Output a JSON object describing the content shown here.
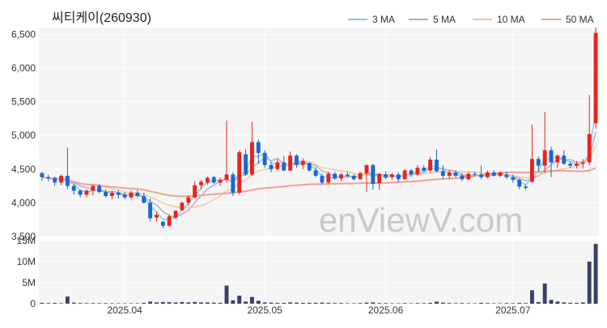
{
  "title": "씨티케이(260930)",
  "watermark": "enViewV.com",
  "legend": [
    {
      "name": "3 MA",
      "color": "#7fcfd4"
    },
    {
      "name": "5 MA",
      "color": "#b5a6d6"
    },
    {
      "name": "10 MA",
      "color": "#f0c98c"
    },
    {
      "name": "50 MA",
      "color": "#f4a08e"
    }
  ],
  "colors": {
    "up": "#e8231f",
    "down": "#1a67d2",
    "volume": "#3b3f66",
    "plot_bg": "#f5f5f5",
    "grid": "#ffffff"
  },
  "chart_data": {
    "type": "candlestick",
    "price_axis": {
      "ylim": [
        3500,
        6600
      ],
      "ticks": [
        3500,
        4000,
        4500,
        5000,
        5500,
        6000,
        6500
      ],
      "tick_labels": [
        "3,500",
        "4,000",
        "4,500",
        "5,000",
        "5,500",
        "6,000",
        "6,500"
      ]
    },
    "volume_axis": {
      "ylim": [
        0,
        15000000
      ],
      "ticks": [
        0,
        5000000,
        10000000,
        15000000
      ],
      "tick_labels": [
        "0",
        "5M",
        "10M",
        "15M"
      ]
    },
    "x_tick_labels": [
      {
        "index": 13,
        "label": "2025.04"
      },
      {
        "index": 35,
        "label": "2025.05"
      },
      {
        "index": 54,
        "label": "2025.06"
      },
      {
        "index": 74,
        "label": "2025.07"
      }
    ],
    "candles": [
      [
        4440,
        4460,
        4330,
        4380,
        200000
      ],
      [
        4380,
        4420,
        4320,
        4360,
        150000
      ],
      [
        4370,
        4390,
        4250,
        4300,
        180000
      ],
      [
        4300,
        4420,
        4260,
        4400,
        120000
      ],
      [
        4400,
        4820,
        4200,
        4250,
        1700000
      ],
      [
        4250,
        4280,
        4120,
        4180,
        250000
      ],
      [
        4180,
        4200,
        4080,
        4120,
        150000
      ],
      [
        4120,
        4200,
        4080,
        4180,
        130000
      ],
      [
        4180,
        4270,
        4110,
        4250,
        140000
      ],
      [
        4250,
        4280,
        4140,
        4160,
        120000
      ],
      [
        4160,
        4200,
        4080,
        4100,
        130000
      ],
      [
        4100,
        4180,
        4050,
        4150,
        110000
      ],
      [
        4150,
        4190,
        4060,
        4120,
        100000
      ],
      [
        4120,
        4160,
        4050,
        4080,
        100000
      ],
      [
        4080,
        4180,
        4050,
        4150,
        110000
      ],
      [
        4150,
        4190,
        4070,
        4100,
        100000
      ],
      [
        4100,
        4150,
        3990,
        4000,
        200000
      ],
      [
        4000,
        4070,
        3720,
        3770,
        500000
      ],
      [
        3780,
        3870,
        3720,
        3820,
        300000
      ],
      [
        3720,
        3730,
        3620,
        3660,
        400000
      ],
      [
        3660,
        3830,
        3640,
        3800,
        350000
      ],
      [
        3780,
        3890,
        3760,
        3880,
        300000
      ],
      [
        3890,
        4020,
        3880,
        4000,
        400000
      ],
      [
        4000,
        4120,
        3960,
        4080,
        300000
      ],
      [
        4080,
        4320,
        4060,
        4260,
        400000
      ],
      [
        4260,
        4340,
        4200,
        4310,
        300000
      ],
      [
        4300,
        4390,
        4270,
        4370,
        300000
      ],
      [
        4380,
        4400,
        4280,
        4300,
        250000
      ],
      [
        4300,
        4380,
        4250,
        4340,
        200000
      ],
      [
        4340,
        5220,
        4300,
        4420,
        4300000
      ],
      [
        4420,
        4450,
        4100,
        4150,
        800000
      ],
      [
        4150,
        4780,
        4120,
        4750,
        1900000
      ],
      [
        4720,
        4790,
        4400,
        4420,
        500000
      ],
      [
        4420,
        5200,
        4400,
        4900,
        1600000
      ],
      [
        4900,
        4940,
        4580,
        4740,
        700000
      ],
      [
        4740,
        4780,
        4520,
        4560,
        300000
      ],
      [
        4560,
        4600,
        4450,
        4500,
        250000
      ],
      [
        4500,
        4650,
        4480,
        4600,
        200000
      ],
      [
        4600,
        4690,
        4470,
        4480,
        200000
      ],
      [
        4480,
        4760,
        4470,
        4700,
        300000
      ],
      [
        4700,
        4720,
        4520,
        4560,
        250000
      ],
      [
        4560,
        4660,
        4500,
        4620,
        200000
      ],
      [
        4590,
        4600,
        4460,
        4480,
        200000
      ],
      [
        4480,
        4530,
        4380,
        4400,
        200000
      ],
      [
        4400,
        4430,
        4270,
        4300,
        250000
      ],
      [
        4300,
        4460,
        4280,
        4430,
        200000
      ],
      [
        4430,
        4460,
        4340,
        4360,
        150000
      ],
      [
        4360,
        4440,
        4320,
        4420,
        150000
      ],
      [
        4420,
        4460,
        4380,
        4400,
        100000
      ],
      [
        4400,
        4420,
        4330,
        4350,
        100000
      ],
      [
        4350,
        4460,
        4340,
        4440,
        150000
      ],
      [
        4440,
        4560,
        4160,
        4560,
        250000
      ],
      [
        4560,
        4580,
        4190,
        4280,
        300000
      ],
      [
        4290,
        4440,
        4190,
        4430,
        150000
      ],
      [
        4420,
        4470,
        4350,
        4380,
        150000
      ],
      [
        4380,
        4440,
        4340,
        4420,
        100000
      ],
      [
        4420,
        4450,
        4310,
        4350,
        100000
      ],
      [
        4350,
        4500,
        4340,
        4480,
        150000
      ],
      [
        4480,
        4500,
        4380,
        4420,
        100000
      ],
      [
        4420,
        4560,
        4400,
        4520,
        150000
      ],
      [
        4520,
        4560,
        4460,
        4480,
        120000
      ],
      [
        4480,
        4680,
        4450,
        4640,
        200000
      ],
      [
        4640,
        4790,
        4450,
        4470,
        500000
      ],
      [
        4470,
        4560,
        4350,
        4400,
        250000
      ],
      [
        4400,
        4480,
        4350,
        4450,
        150000
      ],
      [
        4450,
        4480,
        4380,
        4400,
        120000
      ],
      [
        4400,
        4440,
        4320,
        4350,
        150000
      ],
      [
        4350,
        4460,
        4330,
        4430,
        120000
      ],
      [
        4430,
        4460,
        4390,
        4420,
        100000
      ],
      [
        4420,
        4550,
        4350,
        4380,
        200000
      ],
      [
        4380,
        4480,
        4360,
        4450,
        150000
      ],
      [
        4450,
        4480,
        4390,
        4400,
        100000
      ],
      [
        4400,
        4460,
        4380,
        4450,
        100000
      ],
      [
        4420,
        4460,
        4350,
        4380,
        150000
      ],
      [
        4380,
        4420,
        4300,
        4340,
        120000
      ],
      [
        4340,
        4360,
        4200,
        4240,
        200000
      ],
      [
        4240,
        4270,
        4190,
        4220,
        150000
      ],
      [
        4310,
        5160,
        4300,
        4650,
        3200000
      ],
      [
        4650,
        4690,
        4450,
        4550,
        400000
      ],
      [
        4550,
        5350,
        4450,
        4780,
        4800000
      ],
      [
        4780,
        4830,
        4380,
        4600,
        900000
      ],
      [
        4600,
        4720,
        4520,
        4700,
        500000
      ],
      [
        4700,
        4780,
        4560,
        4580,
        300000
      ],
      [
        4580,
        4610,
        4510,
        4550,
        200000
      ],
      [
        4550,
        4620,
        4510,
        4580,
        200000
      ],
      [
        4580,
        4650,
        4510,
        4600,
        300000
      ],
      [
        4600,
        5600,
        4560,
        5020,
        10000000
      ],
      [
        5180,
        6600,
        5100,
        6520,
        14200000
      ]
    ]
  }
}
